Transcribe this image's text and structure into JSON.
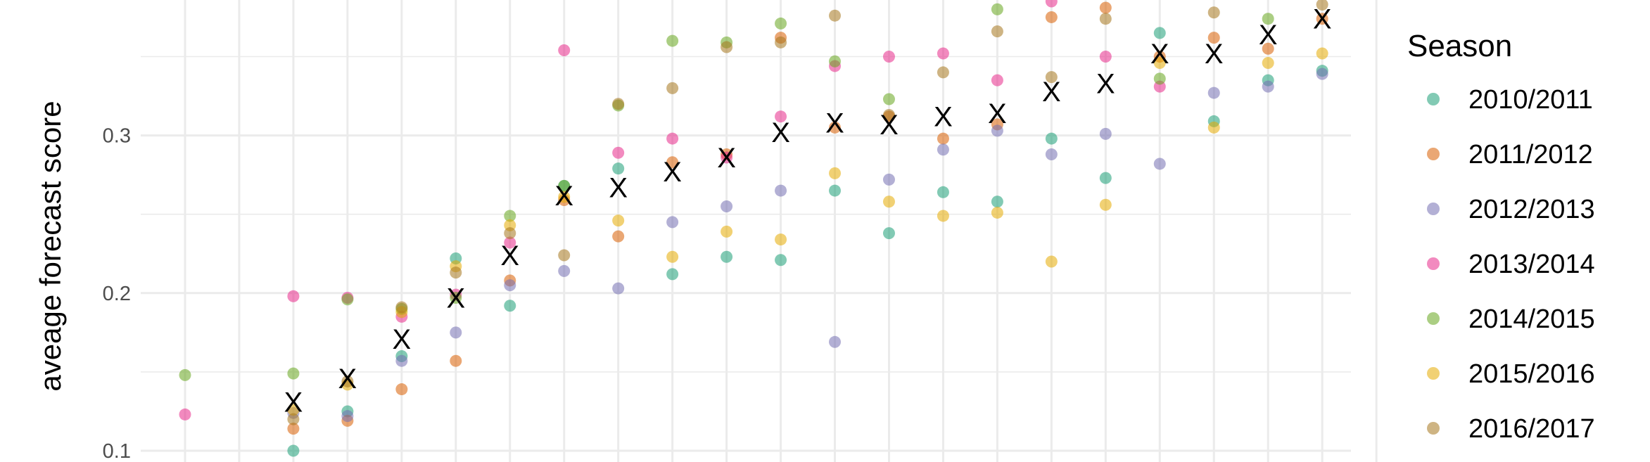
{
  "chart_data": {
    "type": "scatter",
    "ylabel": "aveage forecast score",
    "xlabel": "",
    "ylim": [
      0.1,
      0.385
    ],
    "yticks": [
      0.1,
      0.2,
      0.3
    ],
    "x_count": 23,
    "grid": true,
    "legend": {
      "title": "Season",
      "position": "right"
    },
    "mean_marker": "X",
    "colors": [
      "#1b9e77",
      "#d95f02",
      "#7570b3",
      "#e7298a",
      "#66a61e",
      "#e6ab02",
      "#a6761d"
    ],
    "series": [
      {
        "name": "2010/2011",
        "values": [
          null,
          null,
          0.1,
          0.125,
          0.16,
          0.222,
          0.192,
          0.268,
          0.279,
          0.212,
          0.223,
          0.221,
          0.265,
          0.238,
          0.264,
          0.258,
          0.298,
          0.273,
          0.365,
          0.309,
          0.335,
          0.341,
          null
        ]
      },
      {
        "name": "2011/2012",
        "values": [
          null,
          null,
          0.114,
          0.119,
          0.139,
          0.157,
          0.208,
          0.259,
          0.236,
          0.283,
          0.288,
          0.362,
          0.305,
          0.312,
          0.298,
          0.307,
          0.375,
          0.381,
          0.35,
          0.362,
          0.355,
          0.374,
          null
        ]
      },
      {
        "name": "2012/2013",
        "values": [
          null,
          null,
          0.124,
          0.122,
          0.157,
          0.175,
          0.205,
          0.214,
          0.203,
          0.245,
          0.255,
          0.265,
          0.169,
          0.272,
          0.291,
          0.303,
          0.288,
          0.301,
          0.282,
          0.327,
          0.331,
          0.339,
          null
        ]
      },
      {
        "name": "2013/2014",
        "values": [
          0.123,
          null,
          0.198,
          0.197,
          0.185,
          0.199,
          0.232,
          0.354,
          0.289,
          0.298,
          0.286,
          0.312,
          0.344,
          0.35,
          0.352,
          0.335,
          0.385,
          0.35,
          0.331,
          null,
          null,
          null,
          null
        ]
      },
      {
        "name": "2014/2015",
        "values": [
          0.148,
          null,
          0.149,
          0.196,
          0.19,
          0.197,
          0.249,
          0.268,
          0.319,
          0.36,
          0.359,
          0.371,
          0.347,
          0.323,
          null,
          0.38,
          null,
          null,
          0.336,
          null,
          0.374,
          null,
          null
        ]
      },
      {
        "name": "2015/2016",
        "values": [
          null,
          null,
          0.126,
          0.142,
          0.188,
          0.217,
          0.243,
          0.261,
          0.246,
          0.223,
          0.239,
          0.234,
          0.276,
          0.258,
          0.249,
          0.251,
          0.22,
          0.256,
          0.346,
          0.305,
          0.346,
          0.352,
          null
        ]
      },
      {
        "name": "2016/2017",
        "values": [
          null,
          null,
          0.12,
          0.144,
          0.191,
          0.213,
          0.238,
          0.224,
          0.32,
          0.33,
          0.356,
          0.359,
          0.376,
          0.313,
          0.34,
          0.366,
          0.337,
          0.374,
          null,
          0.378,
          null,
          0.383,
          null
        ]
      }
    ],
    "mean_values": [
      null,
      null,
      0.131,
      0.146,
      0.171,
      0.197,
      0.224,
      0.262,
      0.267,
      0.277,
      0.286,
      0.302,
      0.308,
      0.307,
      0.312,
      0.314,
      0.328,
      0.333,
      0.352,
      0.352,
      0.364,
      0.374,
      null
    ]
  }
}
